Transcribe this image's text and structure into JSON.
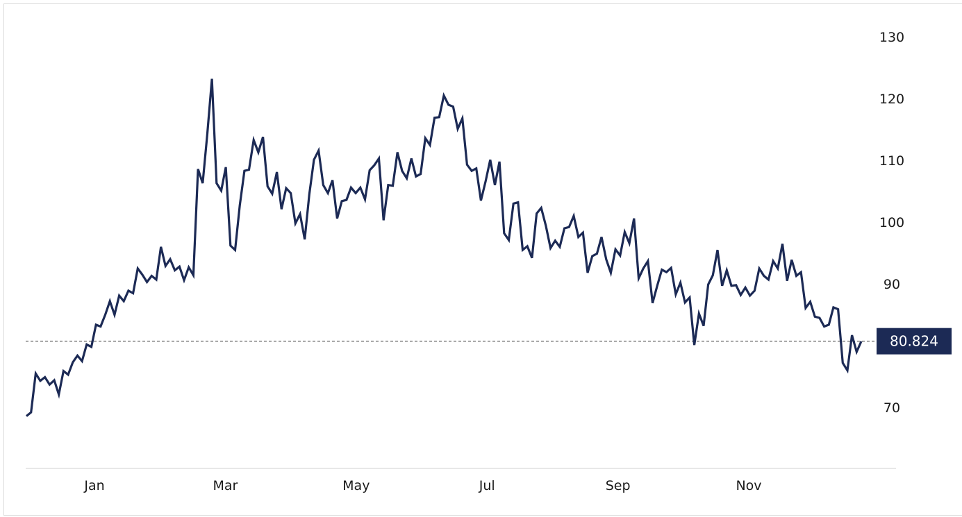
{
  "chart_data": {
    "type": "line",
    "title": "",
    "xlabel": "",
    "ylabel": "",
    "x_ticks": [
      "Jan",
      "Mar",
      "May",
      "Jul",
      "Sep",
      "Nov"
    ],
    "y_ticks": [
      70,
      90,
      100,
      110,
      120,
      130
    ],
    "ylim": [
      62,
      133
    ],
    "grid": false,
    "reference_line": 80.824,
    "last_value_label": "80.824",
    "colors": {
      "line": "#1c2a55",
      "badge": "#1c2a55",
      "axis": "#d0d0d0"
    },
    "series": [
      {
        "values": [
          68.7,
          69.3,
          75.6,
          74.4,
          75.0,
          73.8,
          74.5,
          72.2,
          76.0,
          75.4,
          77.4,
          78.5,
          77.6,
          80.3,
          79.9,
          83.5,
          83.2,
          85.1,
          87.3,
          85.1,
          88.2,
          87.3,
          89.0,
          88.6,
          92.6,
          91.6,
          90.4,
          91.4,
          90.8,
          96.1,
          93.0,
          94.1,
          92.3,
          92.9,
          90.7,
          92.8,
          91.5,
          108.7,
          106.4,
          114.3,
          123.3,
          106.4,
          105.2,
          109.0,
          96.3,
          95.6,
          102.8,
          108.4,
          108.6,
          113.4,
          111.4,
          113.9,
          105.9,
          104.7,
          108.2,
          102.2,
          105.6,
          104.8,
          99.9,
          101.4,
          97.3,
          104.6,
          110.2,
          111.7,
          106.1,
          104.8,
          106.9,
          100.7,
          103.5,
          103.7,
          105.7,
          104.8,
          105.7,
          103.8,
          108.5,
          109.3,
          110.4,
          100.4,
          106.1,
          106.0,
          111.4,
          108.4,
          107.2,
          110.4,
          107.5,
          107.9,
          113.7,
          112.6,
          117.0,
          117.1,
          120.6,
          119.1,
          118.8,
          115.2,
          116.9,
          109.4,
          108.4,
          108.8,
          103.6,
          106.7,
          110.2,
          106.1,
          109.9,
          98.3,
          97.2,
          103.1,
          103.3,
          95.6,
          96.2,
          94.3,
          101.5,
          102.4,
          99.5,
          95.9,
          97.1,
          96.1,
          99.1,
          99.3,
          101.1,
          97.7,
          98.4,
          91.9,
          94.6,
          95.0,
          97.7,
          94.1,
          91.9,
          95.7,
          94.7,
          98.5,
          96.7,
          100.7,
          91.0,
          92.6,
          93.8,
          87.0,
          89.8,
          92.4,
          92.0,
          92.7,
          88.4,
          90.3,
          87.1,
          87.9,
          80.2,
          85.3,
          83.3,
          90.0,
          91.5,
          95.6,
          89.8,
          92.3,
          89.8,
          89.9,
          88.3,
          89.5,
          88.2,
          89.0,
          92.6,
          91.4,
          90.8,
          93.8,
          92.6,
          96.6,
          90.6,
          94.0,
          91.4,
          92.0,
          86.2,
          87.2,
          84.8,
          84.6,
          83.2,
          83.5,
          86.3,
          86.0,
          77.3,
          76.1,
          81.8,
          79.1,
          80.8
        ]
      }
    ]
  }
}
